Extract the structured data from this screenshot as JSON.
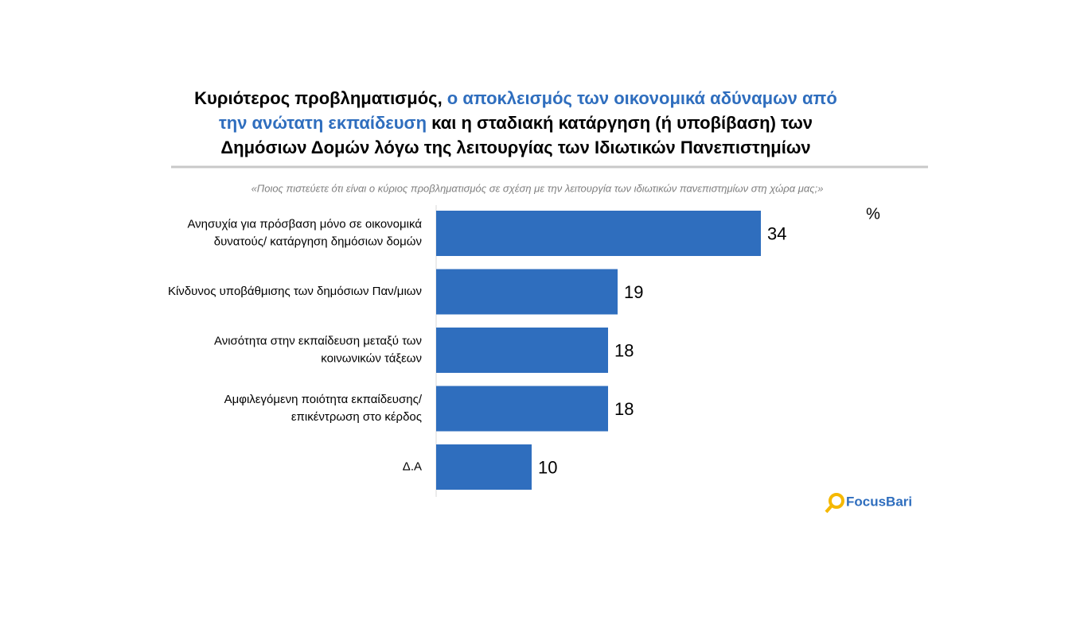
{
  "chart_data": {
    "type": "bar",
    "orientation": "horizontal",
    "title": [
      [
        {
          "text": "Κυριότερος προβληματισμός, ",
          "color": "#000000"
        },
        {
          "text": "ο αποκλεισμός των οικονομικά αδύναμων από",
          "color": "#2f6ebe"
        }
      ],
      [
        {
          "text": "την ανώτατη εκπαίδευση",
          "color": "#2f6ebe"
        },
        {
          "text": " και η σταδιακή κατάργηση (ή υποβίβαση) των",
          "color": "#000000"
        }
      ],
      [
        {
          "text": "Δημόσιων Δομών λόγω της λειτουργίας των Ιδιωτικών Πανεπιστημίων",
          "color": "#000000"
        }
      ]
    ],
    "subtitle": "«Ποιος πιστεύετε ότι είναι ο κύριος προβληματισμός σε σχέση με την λειτουργία των ιδιωτικών πανεπιστημίων στη χώρα μας;»",
    "unit": "%",
    "categories": [
      [
        "Ανησυχία για πρόσβαση μόνο σε οικονομικά",
        "δυνατούς/ κατάργηση δημόσιων δομών"
      ],
      [
        "Κίνδυνος υποβάθμισης των δημόσιων Παν/μιων"
      ],
      [
        "Ανισότητα στην εκπαίδευση μεταξύ των",
        "κοινωνικών τάξεων"
      ],
      [
        "Αμφιλεγόμενη ποιότητα εκπαίδευσης/",
        "επικέντρωση στο κέρδος"
      ],
      [
        "Δ.Α"
      ]
    ],
    "values": [
      34,
      19,
      18,
      18,
      10
    ],
    "color": "#2f6ebe",
    "source": "FocusBari"
  }
}
